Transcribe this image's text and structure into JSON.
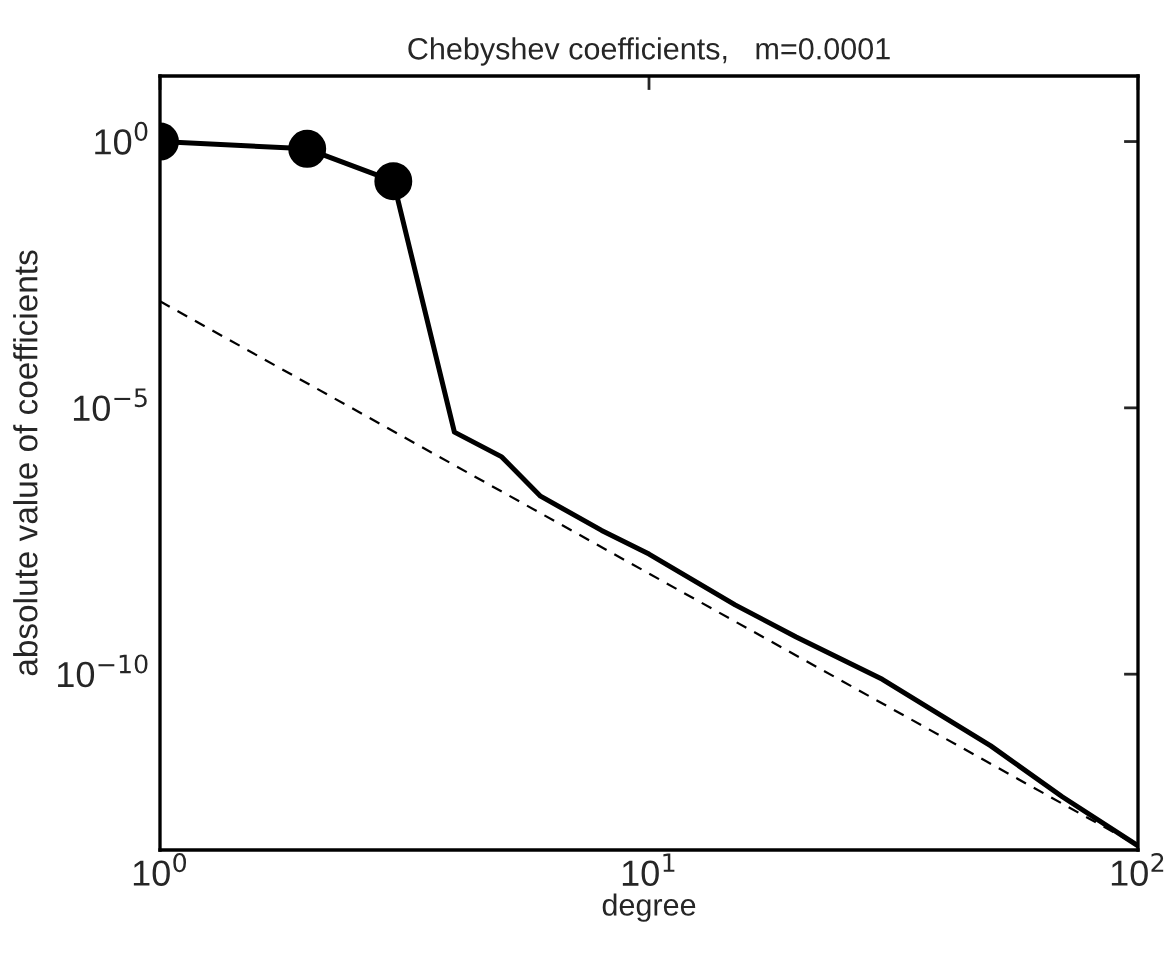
{
  "chart_data": {
    "type": "line",
    "title": "Chebyshev coefficients,   m=0.0001",
    "xlabel": "degree",
    "ylabel": "absolute value of coefficients",
    "log": "xy",
    "grid": false,
    "xlim": [
      1,
      100
    ],
    "ylim": [
      5e-14,
      17
    ],
    "xticks": [
      {
        "value": 1,
        "label": "10$^{0}$"
      },
      {
        "value": 10,
        "label": "10$^{1}$"
      },
      {
        "value": 100,
        "label": "10$^{2}$"
      }
    ],
    "yticks": [
      {
        "value": 1,
        "label": "10$^{0}$"
      },
      {
        "value": 1e-05,
        "label": "10$^{−5}$"
      },
      {
        "value": 1e-10,
        "label": "10$^{−10}$"
      }
    ],
    "series": [
      {
        "color": "#000000",
        "line_style": "solid",
        "marker": "none",
        "x": [
          1,
          2,
          3,
          4,
          5,
          6,
          8,
          10,
          15,
          20,
          30,
          50,
          70,
          100
        ],
        "values": [
          1,
          0.73,
          0.18,
          3.5e-06,
          1.2e-06,
          2.2e-07,
          5e-08,
          1.8e-08,
          2e-09,
          5e-10,
          8e-11,
          4.5e-12,
          5e-13,
          6e-14
        ]
      },
      {
        "type": "scatter",
        "color": "#000000",
        "marker": "circle",
        "x": [
          1,
          2,
          3
        ],
        "values": [
          1,
          0.73,
          0.18
        ]
      },
      {
        "color": "#000000",
        "line_style": "dashed",
        "marker": "none",
        "x": [
          1,
          100
        ],
        "values": [
          0.001,
          6e-14
        ]
      }
    ]
  }
}
